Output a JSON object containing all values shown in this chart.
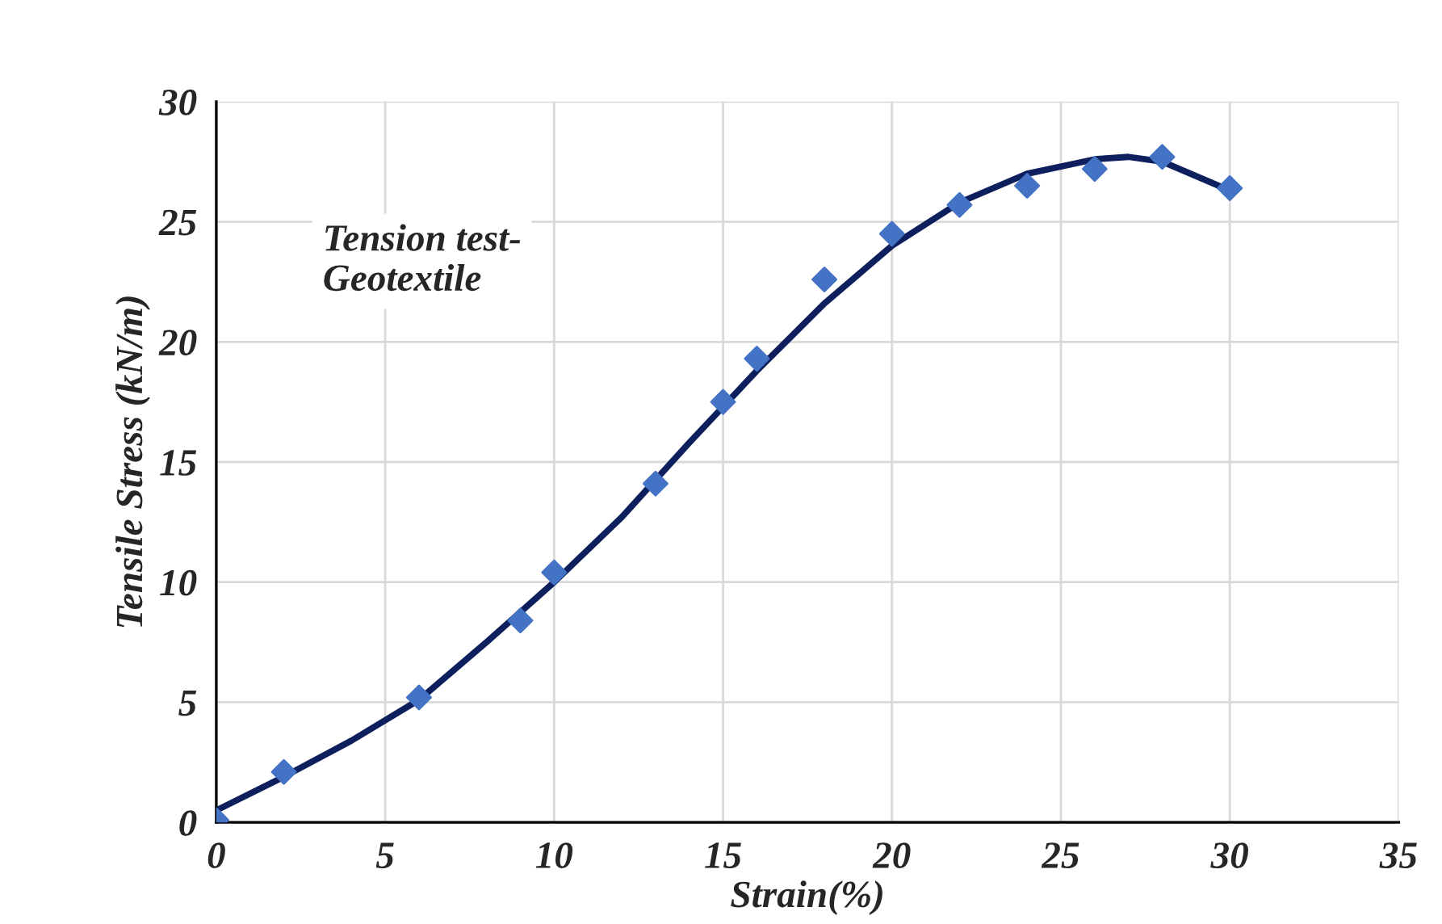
{
  "chart_data": {
    "type": "scatter",
    "xlabel": "Strain(%)",
    "ylabel": "Tensile Stress (kN/m)",
    "annotations": [
      "Tension test-\nGeotextile"
    ],
    "xlim": [
      0,
      35
    ],
    "xticks": [
      0,
      5,
      10,
      15,
      20,
      25,
      30,
      35
    ],
    "ylim": [
      0,
      30
    ],
    "yticks": [
      0,
      5,
      10,
      15,
      20,
      25,
      30
    ],
    "grid": true,
    "marker": "diamond",
    "series": [
      {
        "color": "#4472c4",
        "x": [
          0,
          2,
          6,
          9,
          10,
          13,
          15,
          16,
          18,
          20,
          22,
          24,
          26,
          28,
          30
        ],
        "values": [
          0.1,
          2.1,
          5.2,
          8.4,
          10.4,
          14.1,
          17.5,
          19.3,
          22.6,
          24.5,
          25.7,
          26.5,
          27.2,
          27.7,
          26.4
        ]
      },
      {
        "type": "line",
        "color": "#0d1f5c",
        "marker": "none",
        "line_style": "solid",
        "x": [
          0,
          2,
          4,
          6,
          8,
          10,
          12,
          14,
          15,
          16,
          18,
          20,
          22,
          24,
          26,
          27,
          28,
          30
        ],
        "values": [
          0.5,
          1.9,
          3.4,
          5.1,
          7.5,
          10.0,
          12.7,
          15.8,
          17.3,
          18.8,
          21.6,
          24.0,
          25.8,
          27.0,
          27.6,
          27.7,
          27.5,
          26.3
        ]
      }
    ]
  }
}
